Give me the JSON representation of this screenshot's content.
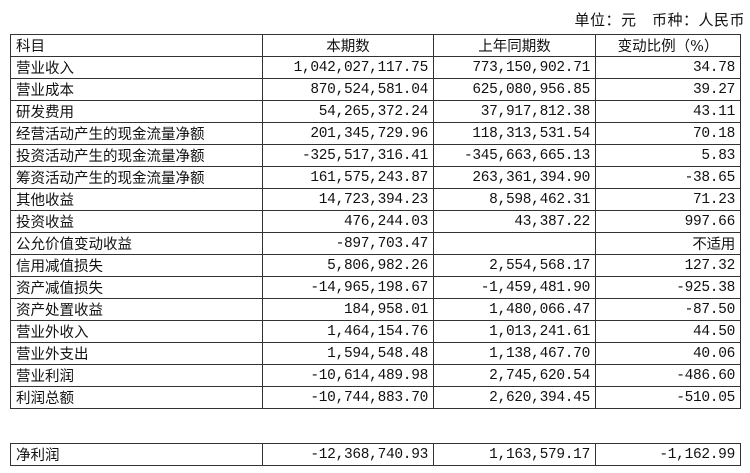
{
  "unit_line": "单位：元　币种：人民币",
  "headers": [
    "科目",
    "本期数",
    "上年同期数",
    "变动比例（%）"
  ],
  "rows": [
    [
      "营业收入",
      "1,042,027,117.75",
      "773,150,902.71",
      "34.78"
    ],
    [
      "营业成本",
      "870,524,581.04",
      "625,080,956.85",
      "39.27"
    ],
    [
      "研发费用",
      "54,265,372.24",
      "37,917,812.38",
      "43.11"
    ],
    [
      "经营活动产生的现金流量净额",
      "201,345,729.96",
      "118,313,531.54",
      "70.18"
    ],
    [
      "投资活动产生的现金流量净额",
      "-325,517,316.41",
      "-345,663,665.13",
      "5.83"
    ],
    [
      "筹资活动产生的现金流量净额",
      "161,575,243.87",
      "263,361,394.90",
      "-38.65"
    ],
    [
      "其他收益",
      "14,723,394.23",
      "8,598,462.31",
      "71.23"
    ],
    [
      "投资收益",
      "476,244.03",
      "43,387.22",
      "997.66"
    ],
    [
      "公允价值变动收益",
      "-897,703.47",
      "",
      "不适用"
    ],
    [
      "信用减值损失",
      "5,806,982.26",
      "2,554,568.17",
      "127.32"
    ],
    [
      "资产减值损失",
      "-14,965,198.67",
      "-1,459,481.90",
      "-925.38"
    ],
    [
      "资产处置收益",
      "184,958.01",
      "1,480,066.47",
      "-87.50"
    ],
    [
      "营业外收入",
      "1,464,154.76",
      "1,013,241.61",
      "44.50"
    ],
    [
      "营业外支出",
      "1,594,548.48",
      "1,138,467.70",
      "40.06"
    ],
    [
      "营业利润",
      "-10,614,489.98",
      "2,745,620.54",
      "-486.60"
    ],
    [
      "利润总额",
      "-10,744,883.70",
      "2,620,394.45",
      "-510.05"
    ]
  ],
  "net_row": [
    "净利润",
    "-12,368,740.93",
    "1,163,579.17",
    "-1,162.99"
  ]
}
